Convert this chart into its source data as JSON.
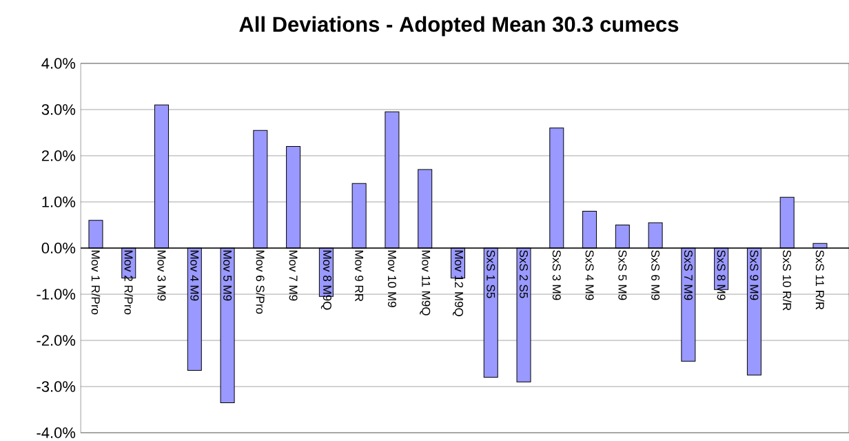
{
  "chart_data": {
    "type": "bar",
    "title": "All Deviations - Adopted Mean 30.3 cumecs",
    "categories": [
      "Mov 1 R/Pro",
      "Mov 2 R/Pro",
      "Mov 3 M9",
      "Mov 4 M9",
      "Mov 5 M9",
      "Mov 6 S/Pro",
      "Mov 7 M9",
      "Mov 8 M9Q",
      "Mov 9 RR",
      "Mov 10 M9",
      "Mov 11 M9Q",
      "Mov 12 M9Q",
      "SxS 1 S5",
      "SxS 2 S5",
      "SxS 3 M9",
      "SxS 4 M9",
      "SxS 5 M9",
      "SxS 6 M9",
      "SxS 7 M9",
      "SxS 8 M9",
      "SxS 9 M9",
      "SxS 10 R/R",
      "SxS 11 R/R"
    ],
    "values": [
      0.6,
      -0.65,
      3.1,
      -2.65,
      -3.35,
      2.55,
      2.2,
      -1.05,
      1.4,
      2.95,
      1.7,
      -0.65,
      -2.8,
      -2.9,
      2.6,
      0.8,
      0.5,
      0.55,
      -2.45,
      -0.9,
      -2.75,
      1.1,
      0.1
    ],
    "color": "#9999ff",
    "ylim": [
      -4,
      4
    ],
    "yticks": [
      {
        "value": -4,
        "label": "-4.0%"
      },
      {
        "value": -3,
        "label": "-3.0%"
      },
      {
        "value": -2,
        "label": "-2.0%"
      },
      {
        "value": -1,
        "label": "-1.0%"
      },
      {
        "value": 0,
        "label": "0.0%"
      },
      {
        "value": 1,
        "label": "1.0%"
      },
      {
        "value": 2,
        "label": "2.0%"
      },
      {
        "value": 3,
        "label": "3.0%"
      },
      {
        "value": 4,
        "label": "4.0%"
      }
    ],
    "grid": "y"
  }
}
